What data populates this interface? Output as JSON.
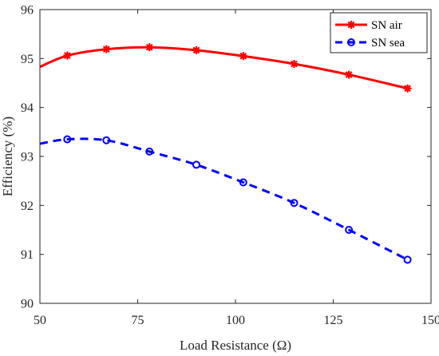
{
  "chart_data": {
    "type": "line",
    "title": "",
    "xlabel": "Load Resistance (Ω)",
    "ylabel": "Efficiency (%)",
    "xlim": [
      50,
      150
    ],
    "ylim": [
      90,
      96
    ],
    "xticks": [
      50,
      75,
      100,
      125,
      150
    ],
    "yticks": [
      90,
      91,
      92,
      93,
      94,
      95,
      96
    ],
    "grid": false,
    "legend_position": "top-right",
    "series": [
      {
        "name": "SN air",
        "color": "#ff0000",
        "line_style": "solid",
        "marker": "asterisk",
        "curve_start": {
          "x": 50,
          "y": 94.83
        },
        "points": [
          {
            "x": 57,
            "y": 95.06
          },
          {
            "x": 67,
            "y": 95.19
          },
          {
            "x": 78,
            "y": 95.23
          },
          {
            "x": 90,
            "y": 95.17
          },
          {
            "x": 102,
            "y": 95.05
          },
          {
            "x": 115,
            "y": 94.89
          },
          {
            "x": 129,
            "y": 94.67
          },
          {
            "x": 144,
            "y": 94.39
          }
        ]
      },
      {
        "name": "SN sea",
        "color": "#0000ff",
        "line_style": "dashed",
        "marker": "circle",
        "curve_start": {
          "x": 50,
          "y": 93.26
        },
        "points": [
          {
            "x": 57,
            "y": 93.35
          },
          {
            "x": 67,
            "y": 93.33
          },
          {
            "x": 78,
            "y": 93.1
          },
          {
            "x": 90,
            "y": 92.83
          },
          {
            "x": 102,
            "y": 92.47
          },
          {
            "x": 115,
            "y": 92.05
          },
          {
            "x": 129,
            "y": 91.5
          },
          {
            "x": 144,
            "y": 90.89
          }
        ]
      }
    ]
  }
}
